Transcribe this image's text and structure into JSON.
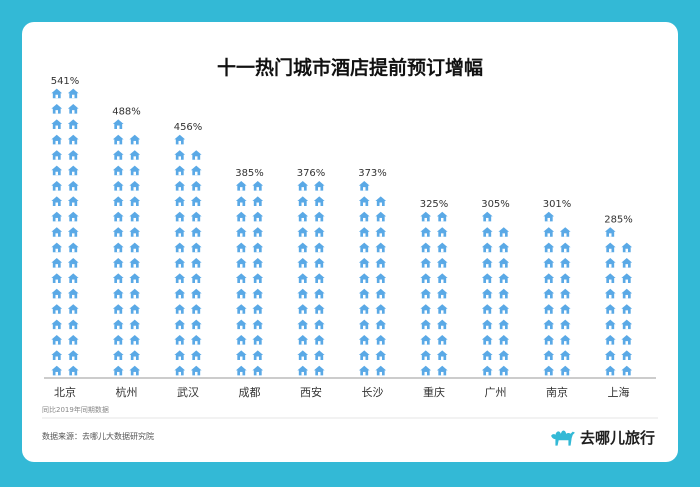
{
  "chart_data": {
    "type": "bar",
    "title": "十一热门城市酒店提前预订增幅",
    "categories": [
      "北京",
      "杭州",
      "武汉",
      "成都",
      "西安",
      "长沙",
      "重庆",
      "广州",
      "南京",
      "上海"
    ],
    "values": [
      541,
      488,
      456,
      385,
      376,
      373,
      325,
      305,
      301,
      285
    ],
    "value_labels": [
      "541%",
      "488%",
      "456%",
      "385%",
      "376%",
      "373%",
      "325%",
      "305%",
      "301%",
      "285%"
    ],
    "note": "同比2019年同期数据",
    "unit": "%",
    "mark": "house-icon",
    "mark_color": "#5aa9e6",
    "ylim": [
      0,
      560
    ]
  },
  "footer": {
    "source": "数据来源：去哪儿大数据研究院",
    "brand": "去哪儿旅行",
    "brand_icon": "camel-icon",
    "brand_color": "#33b9d6"
  },
  "colors": {
    "background": "#33b9d6",
    "card": "#ffffff"
  }
}
